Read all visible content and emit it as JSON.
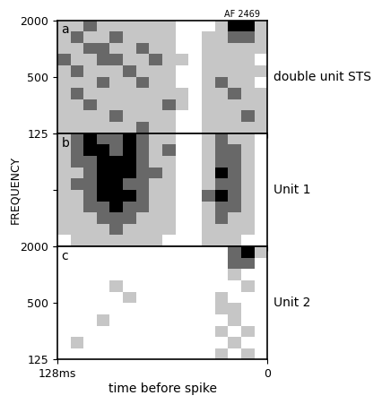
{
  "chart_data": [
    {
      "type": "heatmap",
      "panel": "a",
      "title": "double unit STS",
      "annotation": "AF 2469",
      "x_edges": [
        128,
        120,
        112,
        104,
        96,
        88,
        80,
        72,
        64,
        56,
        48,
        40,
        32,
        24,
        16,
        8,
        0
      ],
      "y_edges": [
        125,
        165,
        218,
        287,
        379,
        500,
        660,
        871,
        1149,
        1516,
        2000
      ],
      "xlim": [
        128,
        0
      ],
      "xticks": [
        {
          "value": 128,
          "label": "128ms"
        },
        0
      ],
      "ylim": [
        125,
        2000
      ],
      "yticks": [
        125,
        500,
        2000
      ],
      "log": "y",
      "tick_labels": "y",
      "clim": [
        0,
        3
      ],
      "cells": [
        [
          1,
          1,
          1,
          1,
          1,
          1,
          2,
          1,
          1,
          0,
          0,
          1,
          1,
          1,
          1,
          1
        ],
        [
          1,
          1,
          1,
          1,
          2,
          1,
          1,
          1,
          1,
          0,
          0,
          1,
          1,
          1,
          2,
          1
        ],
        [
          1,
          1,
          2,
          1,
          1,
          1,
          1,
          1,
          2,
          1,
          0,
          1,
          1,
          1,
          1,
          1
        ],
        [
          1,
          2,
          1,
          1,
          1,
          1,
          1,
          1,
          1,
          1,
          0,
          1,
          1,
          2,
          1,
          1
        ],
        [
          1,
          1,
          1,
          2,
          1,
          1,
          2,
          1,
          1,
          0,
          0,
          1,
          2,
          1,
          1,
          0
        ],
        [
          1,
          2,
          1,
          1,
          1,
          2,
          1,
          1,
          1,
          0,
          0,
          1,
          1,
          1,
          1,
          1
        ],
        [
          2,
          1,
          1,
          2,
          2,
          1,
          1,
          2,
          1,
          1,
          0,
          1,
          1,
          1,
          1,
          0
        ],
        [
          1,
          1,
          2,
          2,
          1,
          1,
          2,
          1,
          1,
          0,
          0,
          1,
          1,
          1,
          1,
          1
        ],
        [
          1,
          2,
          1,
          1,
          2,
          1,
          1,
          1,
          1,
          0,
          0,
          1,
          1,
          2,
          2,
          1
        ],
        [
          1,
          1,
          2,
          1,
          1,
          1,
          1,
          1,
          1,
          0,
          0,
          0,
          1,
          3,
          3,
          1
        ]
      ]
    },
    {
      "type": "heatmap",
      "panel": "b",
      "title": "Unit 1",
      "ylabel": "FREQUENCY",
      "x_edges": [
        128,
        120,
        112,
        104,
        96,
        88,
        80,
        72,
        64,
        56,
        48,
        40,
        32,
        24,
        16,
        8,
        0
      ],
      "y_edges": [
        125,
        165,
        218,
        287,
        379,
        500,
        660,
        871,
        1149,
        1516,
        2000
      ],
      "xlim": [
        128,
        0
      ],
      "xticks": [
        {
          "value": 128,
          "label": "128ms"
        },
        0
      ],
      "ylim": [
        125,
        2000
      ],
      "yticks": [
        125,
        500,
        2000
      ],
      "log": "y",
      "tick_labels": false,
      "clim": [
        0,
        3
      ],
      "cells": [
        [
          0,
          1,
          1,
          1,
          1,
          1,
          1,
          1,
          0,
          0,
          0,
          1,
          1,
          1,
          0,
          0
        ],
        [
          1,
          1,
          1,
          1,
          2,
          1,
          1,
          1,
          1,
          0,
          0,
          1,
          1,
          1,
          1,
          0
        ],
        [
          1,
          1,
          1,
          2,
          2,
          2,
          1,
          1,
          1,
          0,
          0,
          1,
          2,
          1,
          1,
          0
        ],
        [
          1,
          1,
          2,
          2,
          3,
          2,
          2,
          1,
          1,
          0,
          0,
          1,
          2,
          2,
          1,
          0
        ],
        [
          1,
          1,
          2,
          3,
          3,
          3,
          2,
          1,
          1,
          0,
          0,
          2,
          3,
          2,
          1,
          0
        ],
        [
          1,
          2,
          2,
          3,
          3,
          2,
          2,
          1,
          1,
          0,
          0,
          1,
          2,
          2,
          1,
          0
        ],
        [
          1,
          1,
          2,
          3,
          3,
          3,
          2,
          2,
          1,
          0,
          0,
          1,
          3,
          2,
          1,
          0
        ],
        [
          1,
          2,
          2,
          3,
          3,
          3,
          2,
          1,
          1,
          0,
          0,
          1,
          2,
          2,
          1,
          0
        ],
        [
          1,
          2,
          3,
          3,
          2,
          3,
          2,
          1,
          2,
          0,
          0,
          1,
          2,
          2,
          1,
          0
        ],
        [
          1,
          2,
          3,
          2,
          2,
          3,
          2,
          1,
          1,
          0,
          0,
          1,
          2,
          1,
          1,
          0
        ]
      ]
    },
    {
      "type": "heatmap",
      "panel": "c",
      "title": "Unit 2",
      "xlabel": "time before spike",
      "x_edges": [
        128,
        120,
        112,
        104,
        96,
        88,
        80,
        72,
        64,
        56,
        48,
        40,
        32,
        24,
        16,
        8,
        0
      ],
      "y_edges": [
        125,
        165,
        218,
        287,
        379,
        500,
        660,
        871,
        1149,
        1516,
        2000
      ],
      "xlim": [
        128,
        0
      ],
      "xticks": [
        {
          "value": 128,
          "label": "128ms"
        },
        0
      ],
      "ylim": [
        125,
        2000
      ],
      "yticks": [
        125,
        500,
        2000
      ],
      "log": "y",
      "tick_labels": true,
      "clim": [
        0,
        3
      ],
      "cells": [
        [
          0,
          0,
          0,
          0,
          0,
          0,
          0,
          0,
          0,
          0,
          0,
          0,
          1,
          0,
          1,
          0
        ],
        [
          0,
          1,
          0,
          0,
          0,
          0,
          0,
          0,
          0,
          0,
          0,
          0,
          0,
          1,
          0,
          0
        ],
        [
          0,
          0,
          0,
          0,
          0,
          0,
          0,
          0,
          0,
          0,
          0,
          0,
          1,
          0,
          1,
          0
        ],
        [
          0,
          0,
          0,
          1,
          0,
          0,
          0,
          0,
          0,
          0,
          0,
          0,
          0,
          1,
          0,
          0
        ],
        [
          0,
          0,
          0,
          0,
          0,
          0,
          0,
          0,
          0,
          0,
          0,
          0,
          1,
          1,
          0,
          0
        ],
        [
          0,
          0,
          0,
          0,
          0,
          1,
          0,
          0,
          0,
          0,
          0,
          0,
          1,
          0,
          0,
          0
        ],
        [
          0,
          0,
          0,
          0,
          1,
          0,
          0,
          0,
          0,
          0,
          0,
          0,
          0,
          0,
          1,
          0
        ],
        [
          0,
          0,
          0,
          0,
          0,
          0,
          0,
          0,
          0,
          0,
          0,
          0,
          0,
          1,
          0,
          0
        ],
        [
          0,
          0,
          0,
          0,
          0,
          0,
          0,
          0,
          0,
          0,
          0,
          0,
          0,
          2,
          2,
          0
        ],
        [
          0,
          0,
          0,
          0,
          0,
          0,
          0,
          0,
          0,
          0,
          0,
          0,
          0,
          2,
          3,
          1
        ]
      ]
    }
  ]
}
